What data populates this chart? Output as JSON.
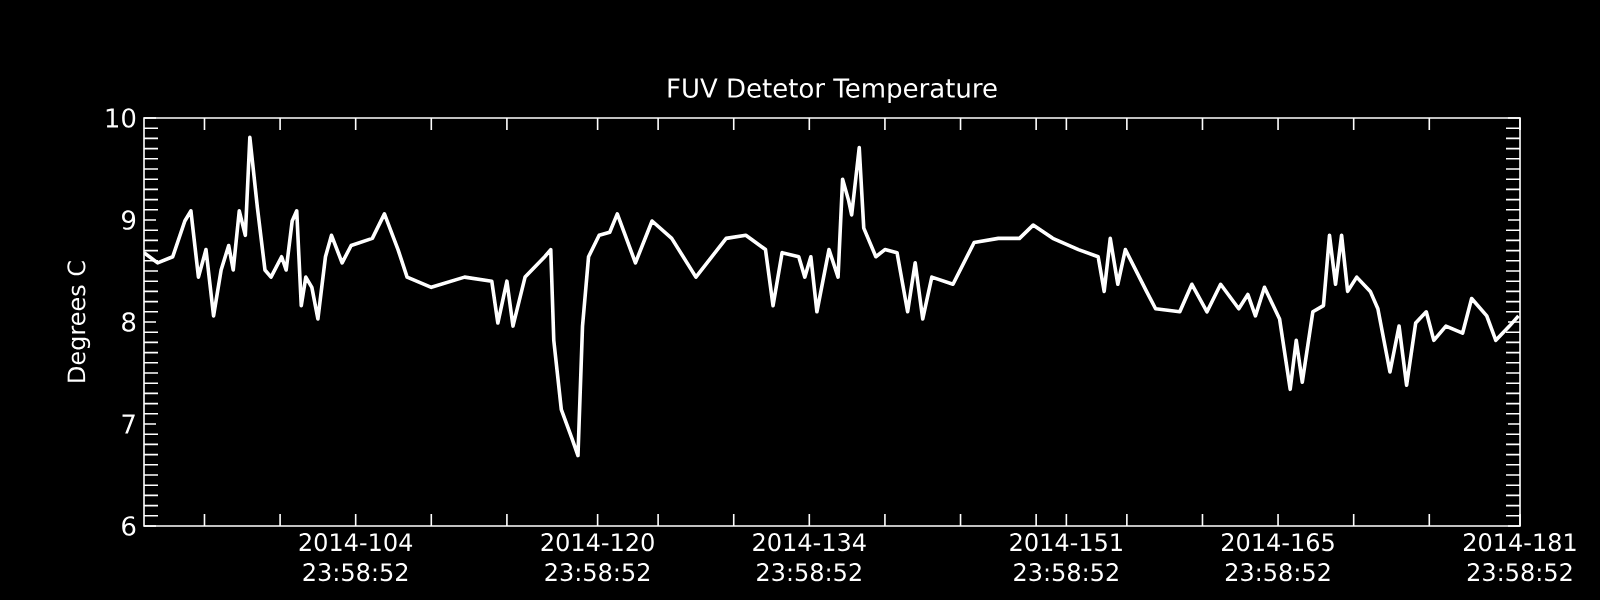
{
  "chart_data": {
    "type": "line",
    "title": "FUV Detetor Temperature",
    "ylabel": "Degrees C",
    "x": [
      "2014-04-01T00:00",
      "2014-04-01T21:36",
      "2014-04-02T21:36",
      "2014-04-03T16:48",
      "2014-04-04T02:24",
      "2014-04-04T14:24",
      "2014-04-05T02:24",
      "2014-04-05T14:24",
      "2014-04-06T02:24",
      "2014-04-06T14:24",
      "2014-04-06T21:36",
      "2014-04-07T07:12",
      "2014-04-07T16:48",
      "2014-04-08T00:00",
      "2014-04-08T12:00",
      "2014-04-09T00:00",
      "2014-04-09T09:36",
      "2014-04-10T02:24",
      "2014-04-10T09:36",
      "2014-04-10T19:12",
      "2014-04-11T02:24",
      "2014-04-11T09:36",
      "2014-04-11T16:48",
      "2014-04-12T02:24",
      "2014-04-12T12:00",
      "2014-04-13T00:00",
      "2014-04-13T09:36",
      "2014-04-14T02:24",
      "2014-04-14T16:48",
      "2014-04-16T02:24",
      "2014-04-16T21:36",
      "2014-04-17T19:12",
      "2014-04-18T09:36",
      "2014-04-20T00:00",
      "2014-04-22T04:48",
      "2014-04-24T00:00",
      "2014-04-24T09:36",
      "2014-04-25T00:00",
      "2014-04-25T09:36",
      "2014-04-26T04:48",
      "2014-04-27T12:00",
      "2014-04-27T21:36",
      "2014-04-28T02:24",
      "2014-04-28T14:24",
      "2014-04-29T07:12",
      "2014-04-29T16:48",
      "2014-04-30T00:00",
      "2014-04-30T09:36",
      "2014-05-01T02:24",
      "2014-05-01T19:12",
      "2014-05-02T07:12",
      "2014-05-03T12:00",
      "2014-05-04T14:24",
      "2014-05-05T21:36",
      "2014-05-07T12:00",
      "2014-05-09T12:00",
      "2014-05-10T19:12",
      "2014-05-12T02:24",
      "2014-05-12T14:24",
      "2014-05-13T04:48",
      "2014-05-14T07:12",
      "2014-05-14T16:48",
      "2014-05-15T02:24",
      "2014-05-15T12:00",
      "2014-05-16T07:12",
      "2014-05-16T21:36",
      "2014-05-17T04:48",
      "2014-05-17T14:24",
      "2014-05-17T19:12",
      "2014-05-18T07:12",
      "2014-05-18T14:24",
      "2014-05-19T09:36",
      "2014-05-20T00:00",
      "2014-05-20T19:12",
      "2014-05-21T12:00",
      "2014-05-22T00:00",
      "2014-05-22T12:00",
      "2014-05-23T02:24",
      "2014-05-24T12:00",
      "2014-05-25T21:36",
      "2014-05-27T12:00",
      "2014-05-28T21:36",
      "2014-05-29T19:12",
      "2014-05-31T02:24",
      "2014-06-01T19:12",
      "2014-06-03T02:24",
      "2014-06-03T12:00",
      "2014-06-03T21:36",
      "2014-06-04T09:36",
      "2014-06-04T21:36",
      "2014-06-06T07:12",
      "2014-06-06T21:36",
      "2014-06-08T12:00",
      "2014-06-09T07:12",
      "2014-06-10T07:12",
      "2014-06-11T04:48",
      "2014-06-12T09:36",
      "2014-06-13T00:00",
      "2014-06-13T12:00",
      "2014-06-14T02:24",
      "2014-06-15T02:24",
      "2014-06-15T19:12",
      "2014-06-16T04:48",
      "2014-06-16T14:24",
      "2014-06-17T07:12",
      "2014-06-18T00:00",
      "2014-06-18T09:36",
      "2014-06-18T19:12",
      "2014-06-19T04:48",
      "2014-06-19T14:24",
      "2014-06-20T04:48",
      "2014-06-21T02:24",
      "2014-06-21T14:24",
      "2014-06-22T09:36",
      "2014-06-23T00:00",
      "2014-06-23T12:00",
      "2014-06-24T02:24",
      "2014-06-24T19:12",
      "2014-06-25T07:12",
      "2014-06-26T02:24",
      "2014-06-27T04:48",
      "2014-06-27T19:12",
      "2014-06-28T19:12",
      "2014-06-29T09:36",
      "2014-06-30T07:12",
      "2014-06-30T21:36"
    ],
    "series": [
      {
        "color": "#ffffff",
        "values": [
          8.68,
          8.58,
          8.64,
          8.99,
          9.09,
          8.44,
          8.71,
          8.06,
          8.51,
          8.75,
          8.51,
          9.09,
          8.85,
          9.81,
          9.12,
          8.51,
          8.44,
          8.64,
          8.51,
          8.99,
          9.09,
          8.16,
          8.44,
          8.34,
          8.03,
          8.64,
          8.85,
          8.58,
          8.75,
          8.82,
          9.06,
          8.71,
          8.44,
          8.34,
          8.44,
          8.4,
          7.99,
          8.4,
          7.96,
          8.44,
          8.64,
          8.71,
          7.82,
          7.14,
          6.86,
          6.69,
          7.96,
          8.64,
          8.85,
          8.88,
          9.06,
          8.58,
          8.99,
          8.82,
          8.44,
          8.82,
          8.85,
          8.71,
          8.16,
          8.68,
          8.64,
          8.44,
          8.64,
          8.1,
          8.71,
          8.44,
          9.4,
          9.19,
          9.05,
          9.71,
          8.92,
          8.64,
          8.71,
          8.68,
          8.1,
          8.58,
          8.03,
          8.44,
          8.37,
          8.78,
          8.82,
          8.82,
          8.95,
          8.82,
          8.71,
          8.64,
          8.3,
          8.82,
          8.37,
          8.71,
          8.3,
          8.13,
          8.1,
          8.37,
          8.1,
          8.37,
          8.13,
          8.27,
          8.06,
          8.34,
          8.03,
          7.34,
          7.82,
          7.41,
          8.1,
          8.16,
          8.85,
          8.37,
          8.85,
          8.3,
          8.44,
          8.3,
          8.13,
          7.51,
          7.96,
          7.38,
          7.99,
          8.1,
          7.82,
          7.96,
          7.89,
          8.23,
          8.06,
          7.82,
          7.96,
          8.06
        ]
      }
    ],
    "xlim": [
      "2014-04-01T00:00",
      "2014-07-01T00:00"
    ],
    "ylim": [
      6,
      10
    ],
    "xticks": [
      {
        "value": "2014-04-05T00:00",
        "label": null
      },
      {
        "value": "2014-04-10T00:00",
        "label": null
      },
      {
        "value": "2014-04-14T23:58",
        "label": "2014-104 23:58:52"
      },
      {
        "value": "2014-04-20T00:00",
        "label": null
      },
      {
        "value": "2014-04-25T00:00",
        "label": null
      },
      {
        "value": "2014-04-30T23:58",
        "label": "2014-120 23:58:52"
      },
      {
        "value": "2014-05-05T00:00",
        "label": null
      },
      {
        "value": "2014-05-10T00:00",
        "label": null
      },
      {
        "value": "2014-05-14T23:58",
        "label": "2014-134 23:58:52"
      },
      {
        "value": "2014-05-20T00:00",
        "label": null
      },
      {
        "value": "2014-05-25T00:00",
        "label": null
      },
      {
        "value": "2014-05-30T00:00",
        "label": null
      },
      {
        "value": "2014-05-31T23:58",
        "label": "2014-151 23:58:52"
      },
      {
        "value": "2014-06-05T00:00",
        "label": null
      },
      {
        "value": "2014-06-10T00:00",
        "label": null
      },
      {
        "value": "2014-06-14T23:58",
        "label": "2014-165 23:58:52"
      },
      {
        "value": "2014-06-20T00:00",
        "label": null
      },
      {
        "value": "2014-06-25T00:00",
        "label": null
      },
      {
        "value": "2014-06-30T23:58",
        "label": "2014-181 23:58:52"
      }
    ],
    "yticks": [
      6,
      7,
      8,
      9,
      10
    ]
  }
}
